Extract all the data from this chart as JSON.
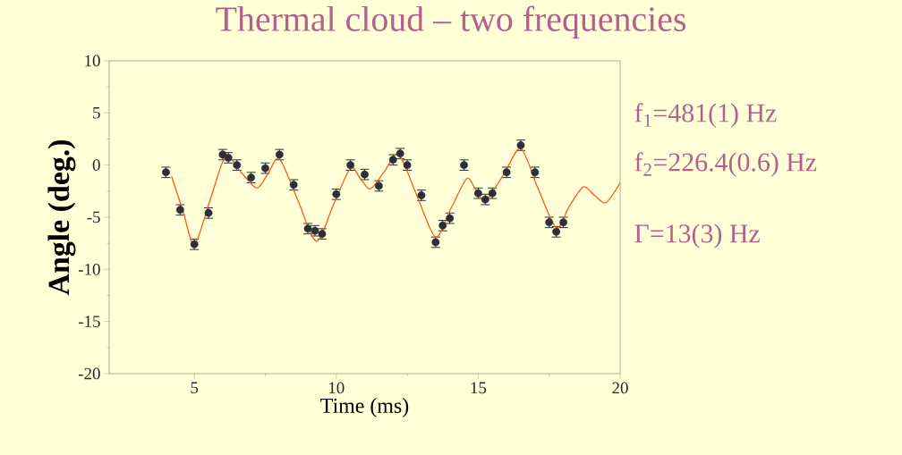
{
  "chart_data": {
    "type": "scatter",
    "title": "Thermal cloud – two frequencies",
    "xlabel": "Time (ms)",
    "ylabel": "Angle (deg.)",
    "xlim": [
      2,
      20
    ],
    "xticks": [
      5,
      10,
      15,
      20
    ],
    "ylim": [
      -20,
      10
    ],
    "yticks": [
      -20,
      -15,
      -10,
      -5,
      0,
      5,
      10
    ],
    "annotations": [
      "f$_{1}$=481(1) Hz",
      "f$_{2}$=226.4(0.6) Hz",
      "Γ=13(3) Hz"
    ],
    "series": [
      {
        "color": "#2a3035",
        "marker": "circle",
        "x": [
          4.0,
          4.5,
          5.0,
          5.5,
          6.0,
          6.2,
          6.5,
          7.0,
          7.5,
          8.0,
          8.5,
          9.0,
          9.25,
          9.5,
          10.0,
          10.5,
          11.0,
          11.5,
          12.0,
          12.25,
          12.5,
          13.0,
          13.5,
          13.75,
          14.0,
          14.5,
          15.0,
          15.25,
          15.5,
          16.0,
          16.5,
          17.0,
          17.5,
          17.75,
          18.0
        ],
        "values": [
          -0.7,
          -4.3,
          -7.6,
          -4.6,
          1.0,
          0.7,
          0.0,
          -1.2,
          -0.3,
          1.0,
          -1.9,
          -6.1,
          -6.3,
          -6.6,
          -2.8,
          0.0,
          -0.9,
          -2.0,
          0.5,
          1.1,
          0.0,
          -2.9,
          -7.4,
          -5.8,
          -5.1,
          0.0,
          -2.7,
          -3.3,
          -2.7,
          -0.7,
          1.9,
          -0.7,
          -5.5,
          -6.4,
          -5.5
        ],
        "errors": [
          0.5,
          0.5,
          0.5,
          0.5,
          0.5,
          0.5,
          0.5,
          0.5,
          0.5,
          0.5,
          0.5,
          0.5,
          0.5,
          0.5,
          0.5,
          0.5,
          0.5,
          0.5,
          0.5,
          0.5,
          0.5,
          0.5,
          0.5,
          0.5,
          0.5,
          0.5,
          0.5,
          0.5,
          0.5,
          0.5,
          0.5,
          0.5,
          0.5,
          0.5,
          0.5
        ]
      },
      {
        "type": "line",
        "color": "#ff5a1e",
        "marker": "none",
        "line_style": "solid",
        "x": [
          4.2,
          4.6,
          5.0,
          5.55,
          6.1,
          6.65,
          7.2,
          7.6,
          8.0,
          8.65,
          9.3,
          9.9,
          10.5,
          10.85,
          11.2,
          11.7,
          12.2,
          12.85,
          13.5,
          14.05,
          14.6,
          14.9,
          15.25,
          15.9,
          16.5,
          17.1,
          17.75,
          18.2,
          18.7,
          19.1,
          19.5,
          20.0
        ],
        "values": [
          -1.1,
          -4.4,
          -7.6,
          -3.4,
          0.8,
          -0.7,
          -2.2,
          -0.8,
          0.6,
          -3.4,
          -7.3,
          -3.8,
          -0.3,
          -1.3,
          -2.3,
          -0.6,
          1.0,
          -3.0,
          -6.9,
          -4.1,
          -1.3,
          -2.3,
          -3.4,
          -0.9,
          1.6,
          -2.2,
          -6.0,
          -4.0,
          -2.1,
          -2.9,
          -3.6,
          -1.7
        ]
      }
    ]
  }
}
